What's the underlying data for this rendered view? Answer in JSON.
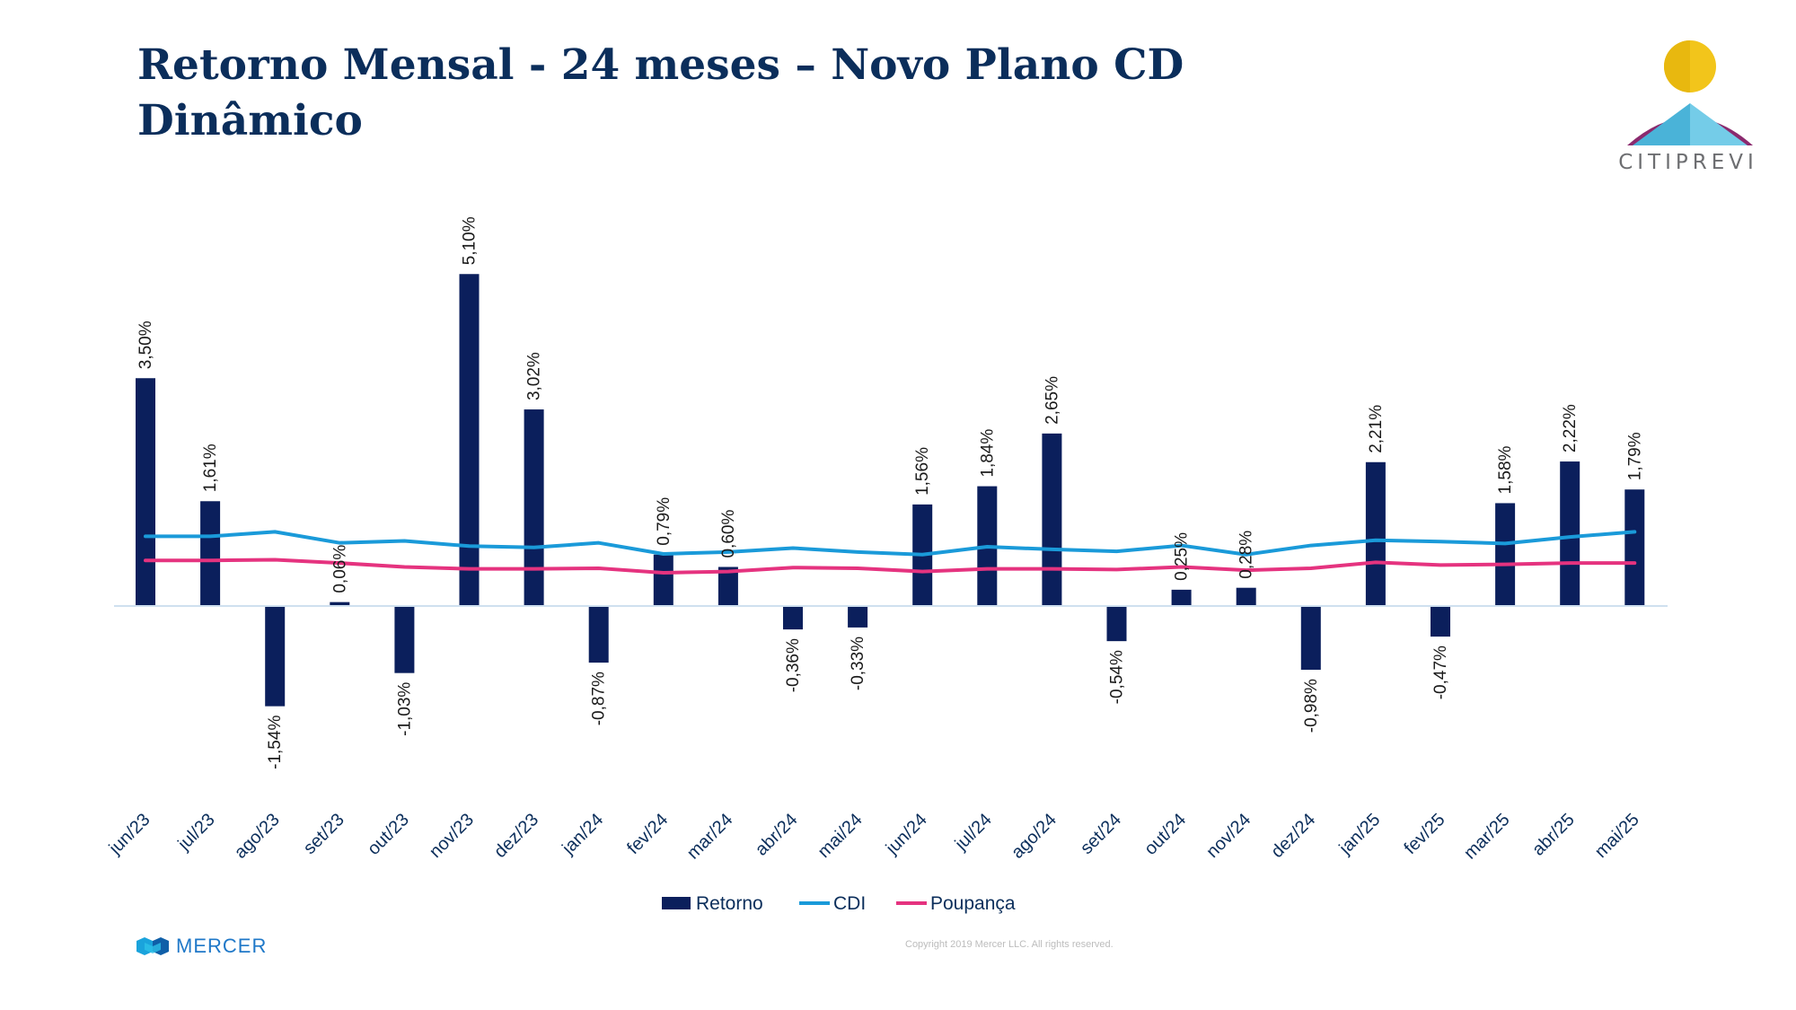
{
  "title_line1": "Retorno Mensal - 24 meses – Novo Plano CD",
  "title_line2": "Dinâmico",
  "logo_text": "CITIPREVI",
  "footer_brand": "MERCER",
  "copyright": "Copyright 2019 Mercer LLC. All rights reserved.",
  "colors": {
    "retorno": "#0b1f5c",
    "cdi": "#1a9ad9",
    "poupanca": "#e5337f",
    "title": "#0b2e5b"
  },
  "chart_data": {
    "type": "bar",
    "title": "Retorno Mensal - 24 meses – Novo Plano CD Dinâmico",
    "categories": [
      "jun/23",
      "jul/23",
      "ago/23",
      "set/23",
      "out/23",
      "nov/23",
      "dez/23",
      "jan/24",
      "fev/24",
      "mar/24",
      "abr/24",
      "mai/24",
      "jun/24",
      "jul/24",
      "ago/24",
      "set/24",
      "out/24",
      "nov/24",
      "dez/24",
      "jan/25",
      "fev/25",
      "mar/25",
      "abr/25",
      "mai/25"
    ],
    "series": [
      {
        "name": "Retorno",
        "kind": "bar",
        "values": [
          3.5,
          1.61,
          -1.54,
          0.06,
          -1.03,
          5.1,
          3.02,
          -0.87,
          0.79,
          0.6,
          -0.36,
          -0.33,
          1.56,
          1.84,
          2.65,
          -0.54,
          0.25,
          0.28,
          -0.98,
          2.21,
          -0.47,
          1.58,
          2.22,
          1.79
        ],
        "labels": [
          "3,50%",
          "1,61%",
          "-1,54%",
          "0,06%",
          "-1,03%",
          "5,10%",
          "3,02%",
          "-0,87%",
          "0,79%",
          "0,60%",
          "-0,36%",
          "-0,33%",
          "1,56%",
          "1,84%",
          "2,65%",
          "-0,54%",
          "0,25%",
          "0,28%",
          "-0,98%",
          "2,21%",
          "-0,47%",
          "1,58%",
          "2,22%",
          "1,79%"
        ]
      },
      {
        "name": "CDI",
        "kind": "line",
        "values": [
          1.07,
          1.07,
          1.14,
          0.97,
          1.0,
          0.92,
          0.9,
          0.97,
          0.8,
          0.83,
          0.89,
          0.83,
          0.79,
          0.91,
          0.87,
          0.84,
          0.93,
          0.79,
          0.93,
          1.01,
          0.99,
          0.96,
          1.06,
          1.14
        ]
      },
      {
        "name": "Poupança",
        "kind": "line",
        "values": [
          0.7,
          0.7,
          0.71,
          0.66,
          0.6,
          0.57,
          0.57,
          0.58,
          0.51,
          0.53,
          0.59,
          0.58,
          0.53,
          0.57,
          0.57,
          0.56,
          0.6,
          0.55,
          0.58,
          0.67,
          0.63,
          0.64,
          0.66,
          0.66
        ]
      }
    ],
    "ylim": [
      -2.6,
      5.6
    ],
    "xlabel": "",
    "ylabel": "",
    "legend": [
      "Retorno",
      "CDI",
      "Poupança"
    ],
    "legend_position": "bottom",
    "grid": false
  }
}
